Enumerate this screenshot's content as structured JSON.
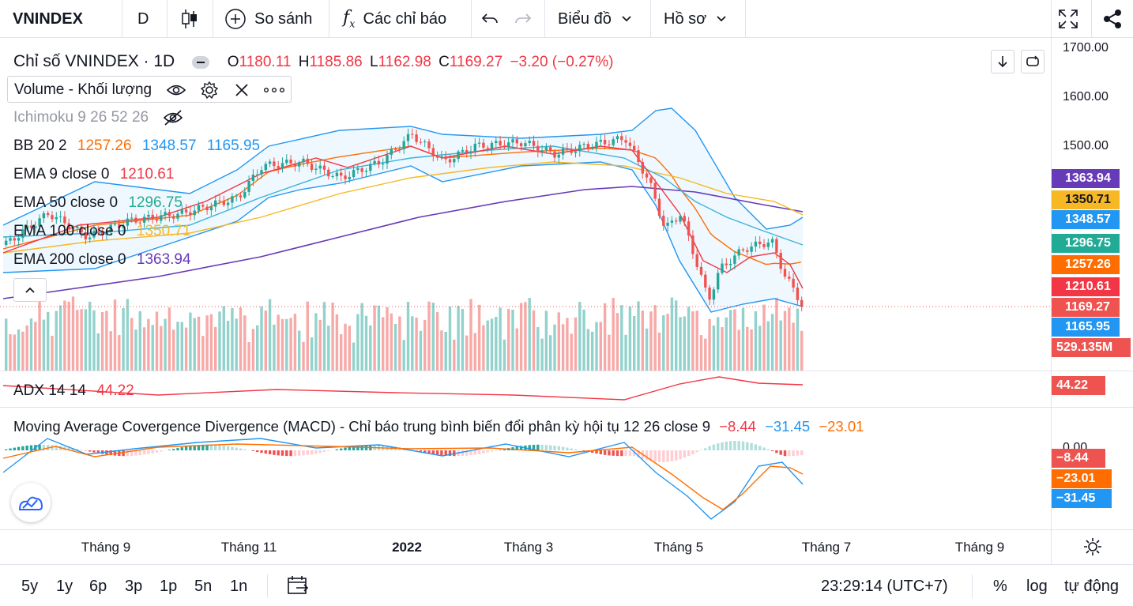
{
  "toolbar": {
    "symbol": "VNINDEX",
    "interval": "D",
    "compare": "So sánh",
    "indicators": "Các chỉ báo",
    "chart_menu": "Biểu đồ",
    "profile_menu": "Hồ sơ"
  },
  "legend": {
    "title": "Chỉ số VNINDEX · 1D",
    "o_lbl": "O",
    "o": "1180.11",
    "h_lbl": "H",
    "h": "1185.86",
    "l_lbl": "L",
    "l": "1162.98",
    "c_lbl": "C",
    "c": "1169.27",
    "change": "−3.20 (−0.27%)",
    "volume": "Volume - Khối lượng",
    "ichimoku": "Ichimoku 9 26 52 26",
    "bb": "BB 20 2",
    "bb1": "1257.26",
    "bb2": "1348.57",
    "bb3": "1165.95",
    "ema9": "EMA 9 close 0",
    "ema9v": "1210.61",
    "ema50": "EMA 50 close 0",
    "ema50v": "1296.75",
    "ema100": "EMA 100 close 0",
    "ema100v": "1350.71",
    "ema200": "EMA 200 close 0",
    "ema200v": "1363.94",
    "adx": "ADX 14 14",
    "adxv": "44.22",
    "macd": "Moving Average Covergence Divergence (MACD) - Chỉ báo trung bình biến đổi phân kỳ hội tụ 12 26 close 9",
    "macd1": "−8.44",
    "macd2": "−31.45",
    "macd3": "−23.01"
  },
  "price_axis": {
    "ticks": [
      "1700.00",
      "1600.00",
      "1500.00"
    ],
    "tag_ema200": "1363.94",
    "tag_ema100": "1350.71",
    "tag_bbu": "1348.57",
    "tag_ema50": "1296.75",
    "tag_bbm": "1257.26",
    "tag_ema9": "1210.61",
    "tag_close": "1169.27",
    "tag_bbl": "1165.95",
    "tag_vol": "529.135M",
    "tag_adx": "44.22",
    "macd_tick": "0.00",
    "tag_macdh": "−8.44",
    "tag_signal": "−23.01",
    "tag_macd": "−31.45"
  },
  "time_axis": {
    "labels": [
      "Tháng 9",
      "Tháng 11",
      "2022",
      "Tháng 3",
      "Tháng 5",
      "Tháng 7",
      "Tháng 9"
    ]
  },
  "bottom": {
    "ranges": [
      "5y",
      "1y",
      "6p",
      "3p",
      "1p",
      "5n",
      "1n"
    ],
    "clock": "23:29:14 (UTC+7)",
    "pct": "%",
    "log": "log",
    "auto": "tự động"
  },
  "colors": {
    "up": "#26a69a",
    "down": "#ef5350",
    "ema9": "#f23645",
    "ema50": "#22ab94",
    "ema100": "#f7b824",
    "ema200": "#673ab7",
    "bb": "#2196f3",
    "bbm": "#ff6d00"
  }
}
